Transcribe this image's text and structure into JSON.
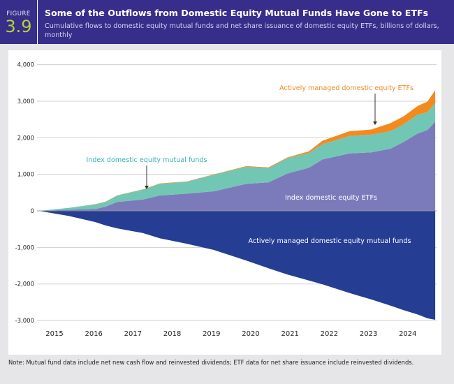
{
  "header": {
    "figure_word": "FIGURE",
    "figure_number": "3.9",
    "title": "Some of the Outflows from Domestic Equity Mutual Funds Have Gone to ETFs",
    "subtitle": "Cumulative flows to domestic equity mutual funds and net share issuance of domestic equity ETFs, billions of dollars, monthly"
  },
  "note": "Note: Mutual fund data include net new cash flow and reinvested dividends; ETF data for net share issuance include reinvested dividends.",
  "chart_data": {
    "type": "area",
    "stacked": true,
    "title": "Some of the Outflows from Domestic Equity Mutual Funds Have Gone to ETFs",
    "xlabel": "",
    "ylabel": "billions of dollars",
    "ylim": [
      -3000,
      4000
    ],
    "yticks": [
      4000,
      3000,
      2000,
      1000,
      0,
      -1000,
      -2000,
      -3000
    ],
    "ytick_labels": [
      "4,000",
      "3,000",
      "2,000",
      "1,000",
      "0",
      "-1,000",
      "-2,000",
      "-3,000"
    ],
    "xticks": [
      2015,
      2016,
      2017,
      2018,
      2019,
      2020,
      2021,
      2022,
      2023,
      2024
    ],
    "xtick_labels": [
      "2015",
      "2016",
      "2017",
      "2018",
      "2019",
      "2020",
      "2021",
      "2022",
      "2023",
      "2024"
    ],
    "grid": true,
    "x": [
      2014.6,
      2015.36,
      2016.05,
      2016.3,
      2016.6,
      2017.26,
      2017.68,
      2018.37,
      2019.06,
      2019.89,
      2020.45,
      2020.93,
      2021.48,
      2021.83,
      2022.52,
      2023.07,
      2023.56,
      2023.9,
      2024.25,
      2024.5,
      2024.7
    ],
    "series": [
      {
        "name": "Index domestic equity ETFs",
        "color": "#7b7bbb",
        "label_color": "#ffffff",
        "values": [
          0,
          30,
          50,
          115,
          245,
          310,
          420,
          470,
          535,
          740,
          780,
          1020,
          1180,
          1405,
          1570,
          1600,
          1700,
          1890,
          2115,
          2210,
          2440
        ]
      },
      {
        "name": "Index domestic equity mutual funds",
        "color": "#72c7b4",
        "label_color": "#38b0b6",
        "values": [
          0,
          50,
          130,
          130,
          175,
          270,
          320,
          325,
          455,
          470,
          390,
          420,
          400,
          420,
          480,
          485,
          480,
          485,
          515,
          490,
          515
        ]
      },
      {
        "name": "Actively managed domestic equity ETFs",
        "color": "#f38a20",
        "label_color": "#f38a20",
        "values": [
          0,
          0,
          5,
          5,
          5,
          10,
          10,
          10,
          10,
          15,
          20,
          20,
          50,
          95,
          130,
          140,
          220,
          215,
          240,
          290,
          345
        ]
      },
      {
        "name": "Actively managed domestic equity mutual funds",
        "color": "#263d94",
        "label_color": "#ffffff",
        "values": [
          0,
          -140,
          -310,
          -400,
          -480,
          -610,
          -750,
          -900,
          -1070,
          -1360,
          -1570,
          -1740,
          -1905,
          -2010,
          -2250,
          -2425,
          -2595,
          -2720,
          -2835,
          -2940,
          -2980
        ]
      }
    ]
  }
}
